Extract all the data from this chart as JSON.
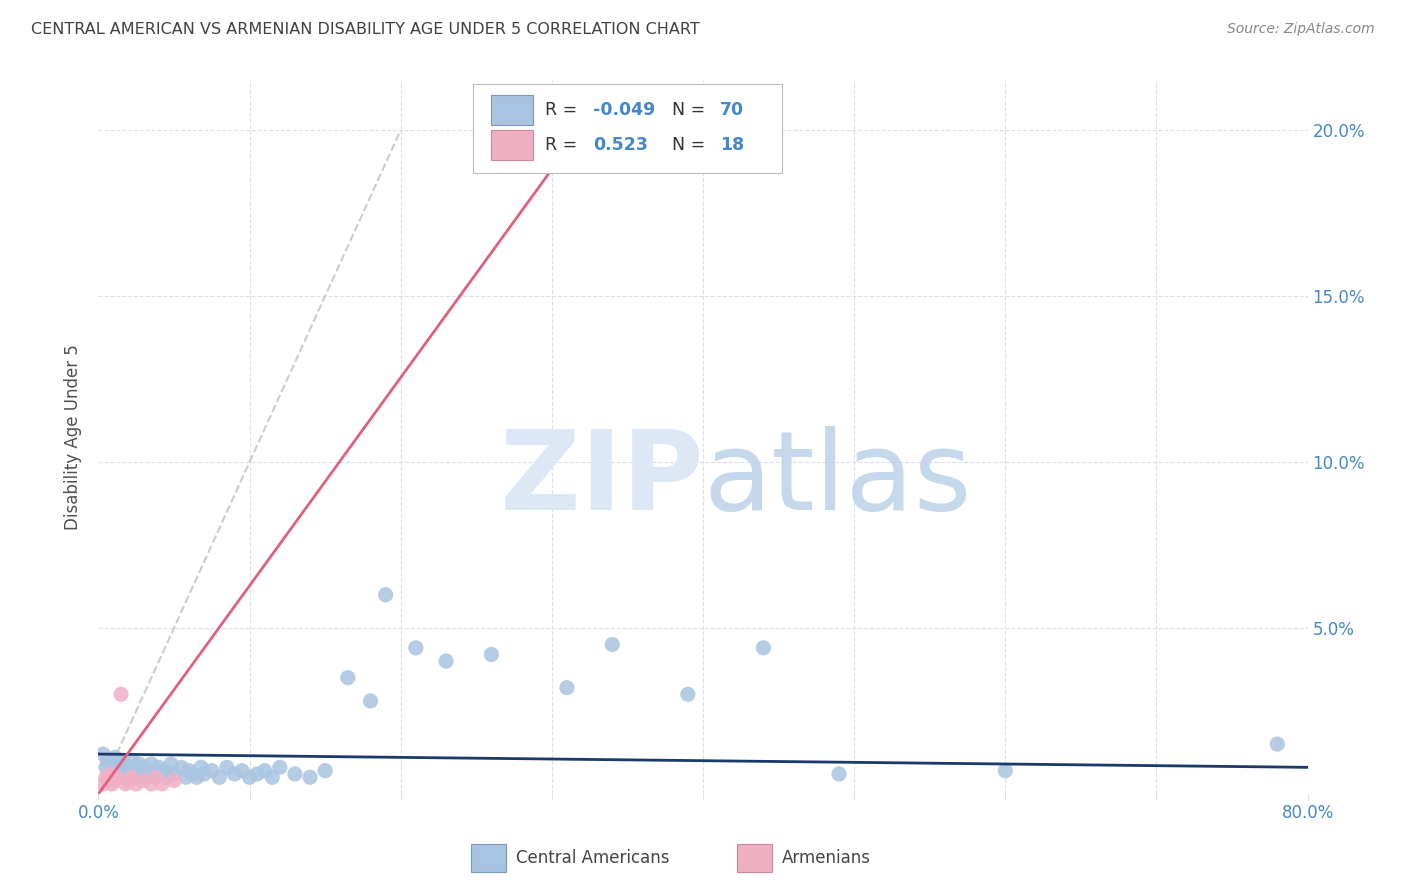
{
  "title": "CENTRAL AMERICAN VS ARMENIAN DISABILITY AGE UNDER 5 CORRELATION CHART",
  "source": "Source: ZipAtlas.com",
  "ylabel": "Disability Age Under 5",
  "xlim": [
    0.0,
    0.8
  ],
  "ylim": [
    0.0,
    0.215
  ],
  "yticks": [
    0.0,
    0.05,
    0.1,
    0.15,
    0.2
  ],
  "ytick_labels": [
    "",
    "5.0%",
    "10.0%",
    "15.0%",
    "20.0%"
  ],
  "xticks": [
    0.0,
    0.1,
    0.2,
    0.3,
    0.4,
    0.5,
    0.6,
    0.7,
    0.8
  ],
  "xtick_labels": [
    "0.0%",
    "",
    "",
    "",
    "",
    "",
    "",
    "",
    "80.0%"
  ],
  "blue_R": -0.049,
  "blue_N": 70,
  "pink_R": 0.523,
  "pink_N": 18,
  "blue_color": "#a8c4e0",
  "pink_color": "#f0b0c4",
  "blue_line_color": "#1a3a6b",
  "pink_line_color": "#e06080",
  "diag_line_color": "#cccccc",
  "grid_color": "#dde0ea",
  "title_color": "#404040",
  "axis_label_color": "#4488cc",
  "background_color": "#ffffff",
  "legend_blue_label": "Central Americans",
  "legend_pink_label": "Armenians",
  "blue_scatter_x": [
    0.003,
    0.005,
    0.006,
    0.007,
    0.008,
    0.009,
    0.01,
    0.011,
    0.012,
    0.013,
    0.014,
    0.015,
    0.016,
    0.017,
    0.018,
    0.019,
    0.02,
    0.021,
    0.022,
    0.023,
    0.024,
    0.025,
    0.026,
    0.027,
    0.028,
    0.03,
    0.032,
    0.033,
    0.035,
    0.037,
    0.038,
    0.04,
    0.042,
    0.044,
    0.046,
    0.048,
    0.05,
    0.055,
    0.058,
    0.06,
    0.062,
    0.065,
    0.068,
    0.07,
    0.075,
    0.08,
    0.085,
    0.09,
    0.095,
    0.1,
    0.105,
    0.11,
    0.115,
    0.12,
    0.13,
    0.14,
    0.15,
    0.165,
    0.18,
    0.19,
    0.21,
    0.23,
    0.26,
    0.31,
    0.34,
    0.39,
    0.44,
    0.49,
    0.6,
    0.78
  ],
  "blue_scatter_y": [
    0.012,
    0.008,
    0.01,
    0.006,
    0.009,
    0.007,
    0.005,
    0.011,
    0.008,
    0.006,
    0.01,
    0.007,
    0.005,
    0.009,
    0.006,
    0.008,
    0.007,
    0.005,
    0.01,
    0.006,
    0.008,
    0.007,
    0.005,
    0.009,
    0.006,
    0.008,
    0.005,
    0.007,
    0.009,
    0.006,
    0.005,
    0.008,
    0.006,
    0.007,
    0.005,
    0.009,
    0.006,
    0.008,
    0.005,
    0.007,
    0.006,
    0.005,
    0.008,
    0.006,
    0.007,
    0.005,
    0.008,
    0.006,
    0.007,
    0.005,
    0.006,
    0.007,
    0.005,
    0.008,
    0.006,
    0.005,
    0.007,
    0.035,
    0.028,
    0.06,
    0.044,
    0.04,
    0.042,
    0.032,
    0.045,
    0.03,
    0.044,
    0.006,
    0.007,
    0.015
  ],
  "pink_scatter_x": [
    0.003,
    0.005,
    0.006,
    0.008,
    0.009,
    0.01,
    0.012,
    0.015,
    0.018,
    0.02,
    0.022,
    0.025,
    0.03,
    0.035,
    0.038,
    0.042,
    0.05,
    0.33
  ],
  "pink_scatter_y": [
    0.003,
    0.005,
    0.004,
    0.006,
    0.003,
    0.004,
    0.005,
    0.03,
    0.003,
    0.004,
    0.005,
    0.003,
    0.004,
    0.003,
    0.005,
    0.003,
    0.004,
    0.207
  ],
  "blue_line_x": [
    0.0,
    0.8
  ],
  "blue_line_y": [
    0.012,
    0.008
  ],
  "pink_line_x": [
    0.0,
    0.33
  ],
  "pink_line_y": [
    0.0,
    0.207
  ]
}
